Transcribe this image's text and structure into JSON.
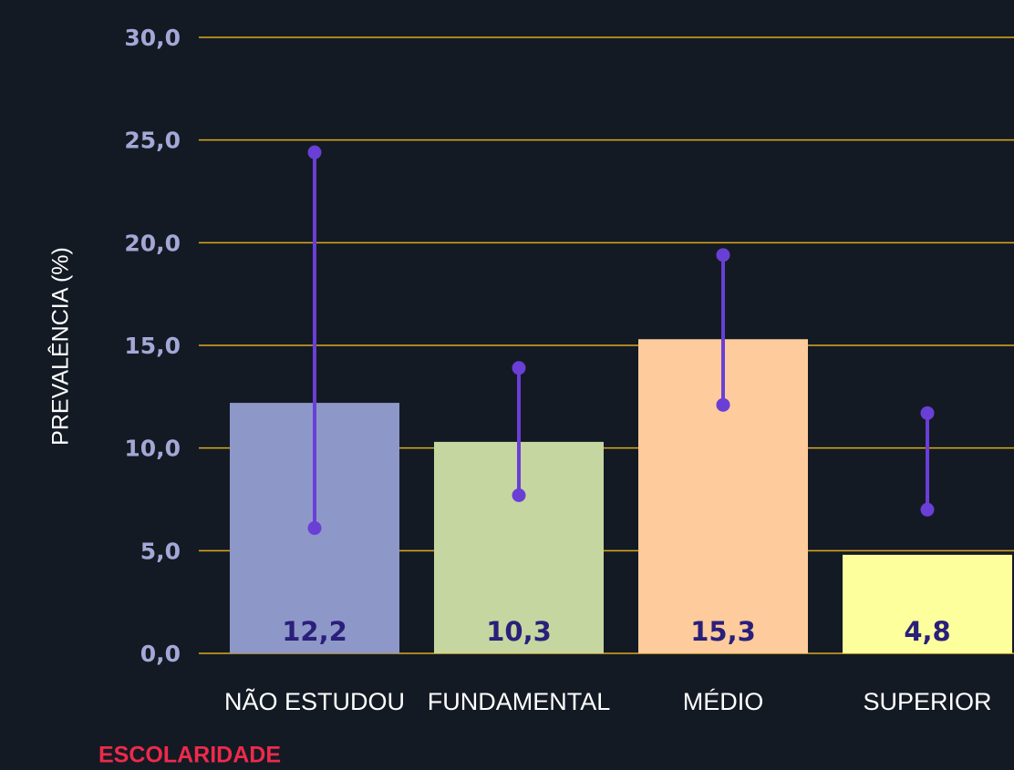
{
  "chart_data": {
    "type": "bar",
    "y_label": "PREVALÊNCIA (%)",
    "x_label": "ESCOLARIDADE",
    "categories": [
      "NÃO ESTUDOU",
      "FUNDAMENTAL",
      "MÉDIO",
      "SUPERIOR"
    ],
    "values": [
      12.2,
      10.3,
      15.3,
      4.8
    ],
    "value_labels": [
      "12,2",
      "10,3",
      "15,3",
      "4,8"
    ],
    "ci_low": [
      6.1,
      7.7,
      12.1,
      7.0
    ],
    "ci_high": [
      24.4,
      13.9,
      19.4,
      11.7
    ],
    "colors": [
      "#8e98c8",
      "#c5d6a0",
      "#fecb9c",
      "#fdfe9c"
    ],
    "error_color": "#6a3fd6",
    "ylim": [
      0,
      30
    ],
    "yticks": [
      {
        "value": 0,
        "label": "0,0"
      },
      {
        "value": 5,
        "label": "5,0"
      },
      {
        "value": 10,
        "label": "10,0"
      },
      {
        "value": 15,
        "label": "15,0"
      },
      {
        "value": 20,
        "label": "20,0"
      },
      {
        "value": 25,
        "label": "25,0"
      },
      {
        "value": 30,
        "label": "30,0"
      }
    ],
    "grid": true,
    "grid_color": "#e0a81e"
  }
}
